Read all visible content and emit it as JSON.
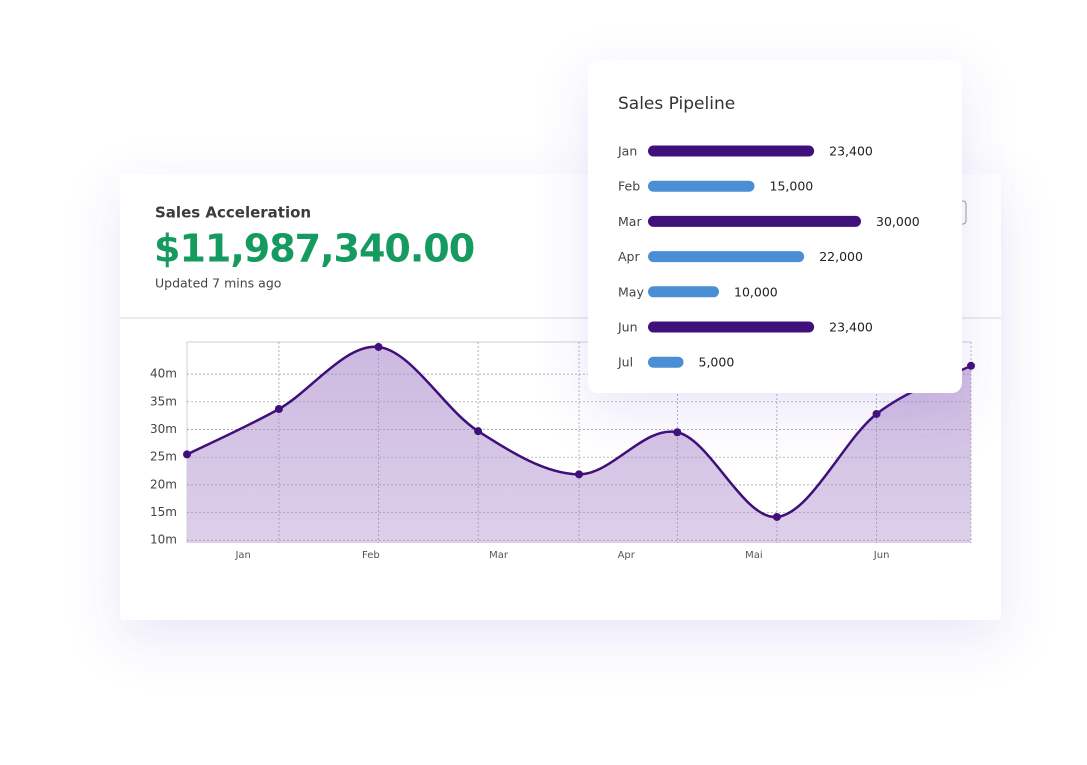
{
  "chart_data": [
    {
      "type": "area",
      "title": "Sales Acceleration",
      "headline": "$11,987,340.00",
      "subtitle": "Updated 7 mins ago",
      "x": [
        0.56,
        1.28,
        2.06,
        2.84,
        3.63,
        4.4,
        5.18,
        5.96,
        6.7
      ],
      "values": [
        25.5,
        33.7,
        44.9,
        29.7,
        21.9,
        29.5,
        14.2,
        32.8,
        41.5
      ],
      "color": "#3f0f7a",
      "fill": "#d9cce6",
      "xlim": [
        0.56,
        6.7
      ],
      "xticks": [
        {
          "value": 1,
          "label": "Jan"
        },
        {
          "value": 2,
          "label": "Feb"
        },
        {
          "value": 3,
          "label": "Mar"
        },
        {
          "value": 4,
          "label": "Apr"
        },
        {
          "value": 5,
          "label": "Mai"
        },
        {
          "value": 6,
          "label": "Jun"
        }
      ],
      "ylim": [
        9.5,
        45.8
      ],
      "yticks": [
        {
          "value": 10,
          "label": "10m"
        },
        {
          "value": 15,
          "label": "15m"
        },
        {
          "value": 20,
          "label": "20m"
        },
        {
          "value": 25,
          "label": "25m"
        },
        {
          "value": 30,
          "label": "30m"
        },
        {
          "value": 35,
          "label": "35m"
        },
        {
          "value": 40,
          "label": "40m"
        }
      ],
      "grid": true
    },
    {
      "type": "hbar",
      "title": "Sales Pipeline",
      "categories": [
        "Jan",
        "Feb",
        "Mar",
        "Apr",
        "May",
        "Jun",
        "Jul"
      ],
      "values": [
        23400,
        15000,
        30000,
        22000,
        10000,
        23400,
        5000
      ],
      "value_labels": [
        "23,400",
        "15,000",
        "30,000",
        "22,000",
        "10,000",
        "23,400",
        "5,000"
      ],
      "colors": [
        "#3f0f7a",
        "#4a8fd6",
        "#3f0f7a",
        "#4a8fd6",
        "#4a8fd6",
        "#3f0f7a",
        "#4a8fd6"
      ]
    }
  ]
}
